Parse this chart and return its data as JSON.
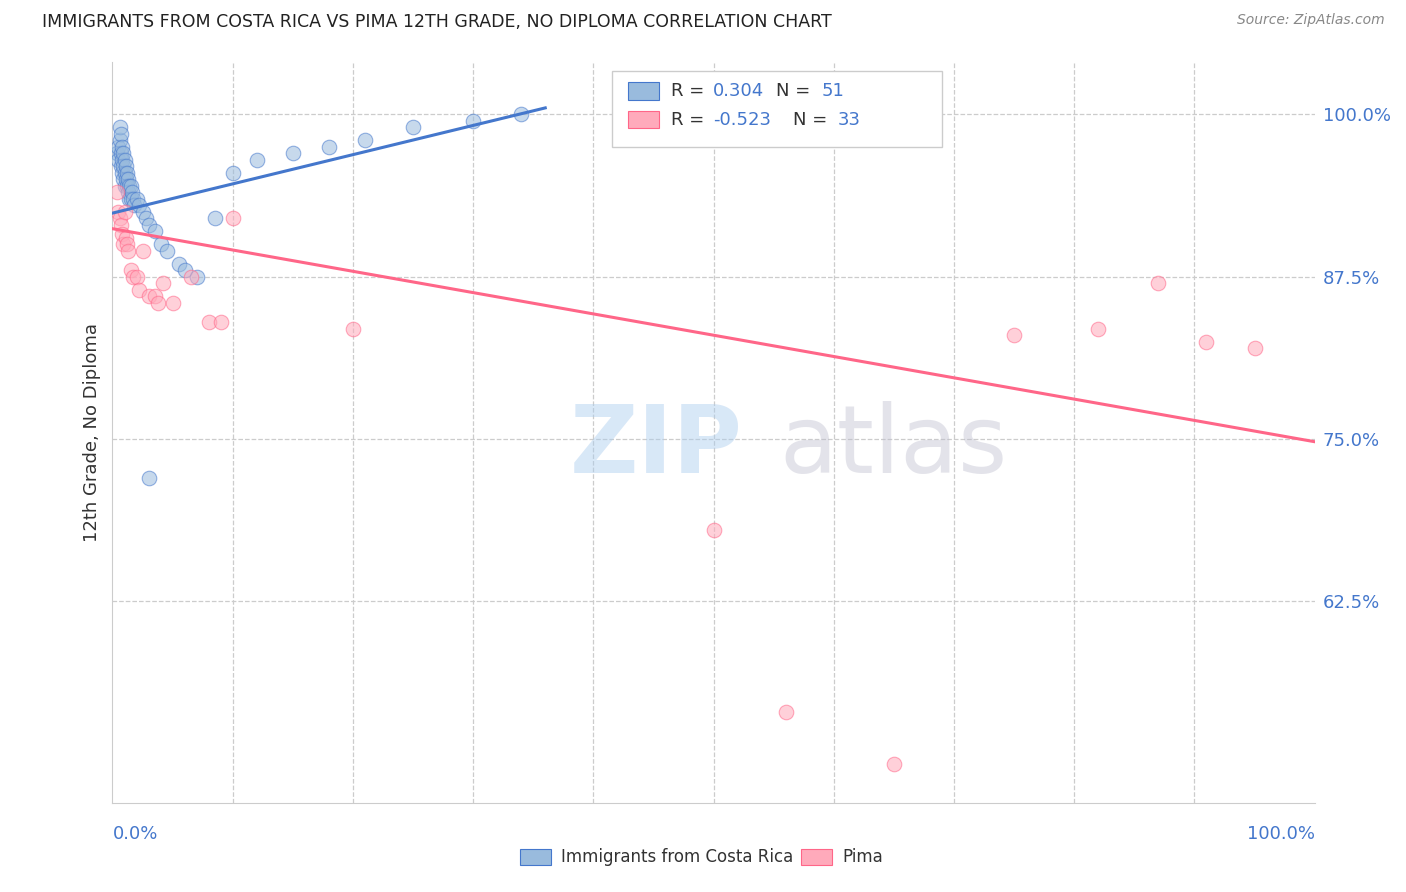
{
  "title": "IMMIGRANTS FROM COSTA RICA VS PIMA 12TH GRADE, NO DIPLOMA CORRELATION CHART",
  "source": "Source: ZipAtlas.com",
  "ylabel": "12th Grade, No Diploma",
  "ytick_labels": [
    "100.0%",
    "87.5%",
    "75.0%",
    "62.5%"
  ],
  "ytick_values": [
    1.0,
    0.875,
    0.75,
    0.625
  ],
  "xlim": [
    0.0,
    1.0
  ],
  "ylim": [
    0.47,
    1.04
  ],
  "color_blue": "#99BBDD",
  "color_pink": "#FFAABB",
  "trendline_blue": "#4477CC",
  "trendline_pink": "#FF6688",
  "blue_scatter_x": [
    0.004,
    0.005,
    0.005,
    0.006,
    0.006,
    0.007,
    0.007,
    0.007,
    0.008,
    0.008,
    0.008,
    0.009,
    0.009,
    0.009,
    0.01,
    0.01,
    0.01,
    0.011,
    0.011,
    0.012,
    0.012,
    0.013,
    0.013,
    0.014,
    0.014,
    0.015,
    0.015,
    0.016,
    0.017,
    0.018,
    0.02,
    0.022,
    0.025,
    0.028,
    0.03,
    0.035,
    0.04,
    0.045,
    0.055,
    0.06,
    0.07,
    0.085,
    0.1,
    0.12,
    0.15,
    0.18,
    0.21,
    0.25,
    0.3,
    0.34,
    0.03
  ],
  "blue_scatter_y": [
    0.97,
    0.965,
    0.975,
    0.98,
    0.99,
    0.985,
    0.97,
    0.96,
    0.975,
    0.965,
    0.955,
    0.97,
    0.96,
    0.95,
    0.965,
    0.955,
    0.945,
    0.96,
    0.95,
    0.955,
    0.945,
    0.95,
    0.94,
    0.945,
    0.935,
    0.945,
    0.935,
    0.94,
    0.935,
    0.93,
    0.935,
    0.93,
    0.925,
    0.92,
    0.915,
    0.91,
    0.9,
    0.895,
    0.885,
    0.88,
    0.875,
    0.92,
    0.955,
    0.965,
    0.97,
    0.975,
    0.98,
    0.99,
    0.995,
    1.0,
    0.72
  ],
  "pink_scatter_x": [
    0.004,
    0.005,
    0.006,
    0.007,
    0.008,
    0.009,
    0.01,
    0.011,
    0.012,
    0.013,
    0.015,
    0.017,
    0.02,
    0.022,
    0.025,
    0.03,
    0.035,
    0.038,
    0.042,
    0.05,
    0.065,
    0.08,
    0.09,
    0.1,
    0.2,
    0.5,
    0.56,
    0.65,
    0.75,
    0.82,
    0.87,
    0.91,
    0.95
  ],
  "pink_scatter_y": [
    0.94,
    0.925,
    0.92,
    0.915,
    0.908,
    0.9,
    0.925,
    0.905,
    0.9,
    0.895,
    0.88,
    0.875,
    0.875,
    0.865,
    0.895,
    0.86,
    0.86,
    0.855,
    0.87,
    0.855,
    0.875,
    0.84,
    0.84,
    0.92,
    0.835,
    0.68,
    0.54,
    0.5,
    0.83,
    0.835,
    0.87,
    0.825,
    0.82
  ],
  "blue_trend_x": [
    0.0,
    0.36
  ],
  "blue_trend_y": [
    0.924,
    1.005
  ],
  "pink_trend_x": [
    0.0,
    1.0
  ],
  "pink_trend_y": [
    0.912,
    0.748
  ],
  "grid_x": [
    0.1,
    0.2,
    0.3,
    0.4,
    0.5,
    0.6,
    0.7,
    0.8,
    0.9
  ],
  "watermark_zip_color": "#AACCEE",
  "watermark_atlas_color": "#AAAACC"
}
